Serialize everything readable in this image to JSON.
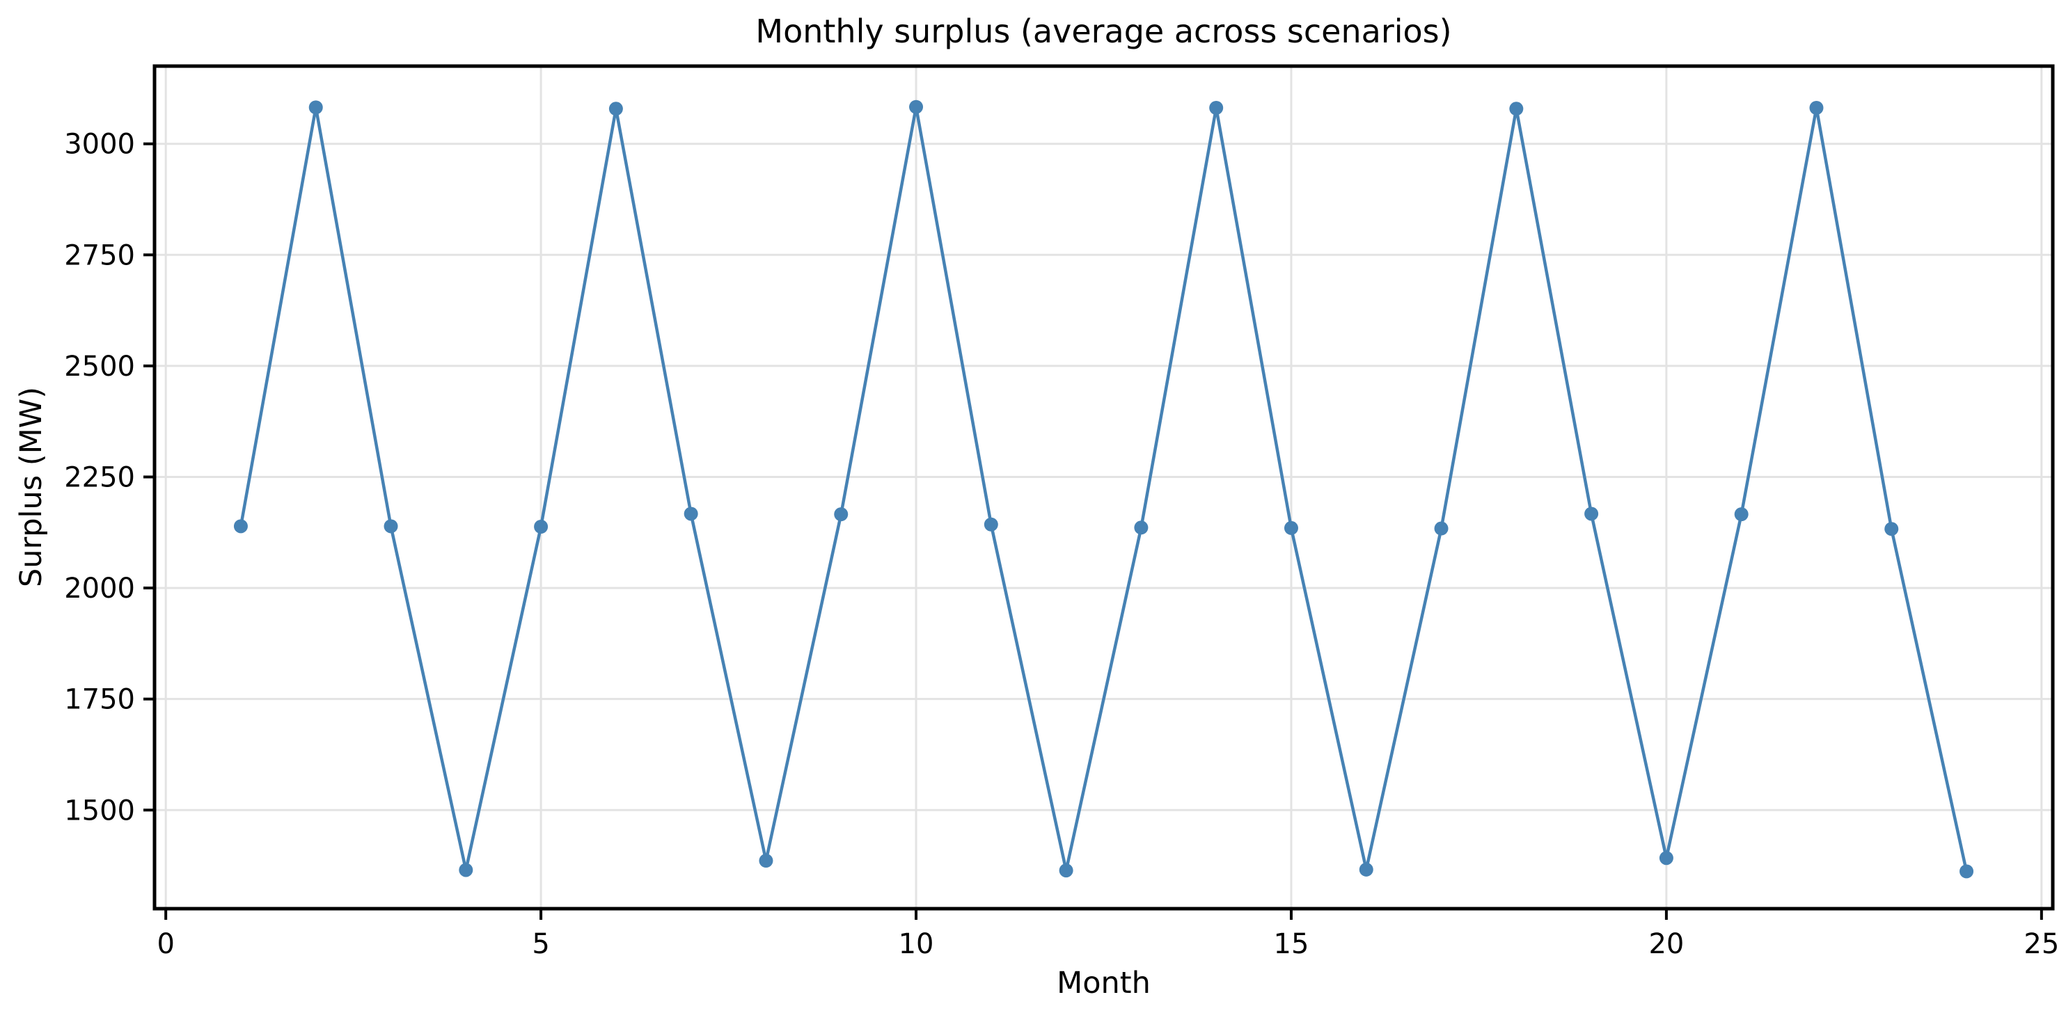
{
  "figure": {
    "title": "Monthly surplus (average across scenarios)",
    "xlabel": "Month",
    "ylabel": "Surplus (MW)"
  },
  "chart_data": {
    "type": "line",
    "title": "Monthly surplus (average across scenarios)",
    "xlabel": "Month",
    "ylabel": "Surplus (MW)",
    "x": [
      1,
      2,
      3,
      4,
      5,
      6,
      7,
      8,
      9,
      10,
      11,
      12,
      13,
      14,
      15,
      16,
      17,
      18,
      19,
      20,
      21,
      22,
      23,
      24
    ],
    "y": [
      2139,
      3082,
      2139,
      1365,
      2138,
      3079,
      2167,
      1386,
      2166,
      3083,
      2143,
      1364,
      2136,
      3081,
      2135,
      1366,
      2134,
      3079,
      2167,
      1392,
      2166,
      3081,
      2133,
      1362
    ],
    "x_ticks": [
      0,
      5,
      10,
      15,
      20,
      25
    ],
    "y_ticks": [
      1500,
      1750,
      2000,
      2250,
      2500,
      2750,
      3000
    ],
    "xlim": [
      -0.15,
      25.15
    ],
    "ylim": [
      1278,
      3175
    ],
    "grid": true,
    "legend_position": "none",
    "colors": {
      "series": "#4682B4",
      "grid": "#e3e3e3",
      "spine": "#000000",
      "background": "#ffffff"
    }
  }
}
